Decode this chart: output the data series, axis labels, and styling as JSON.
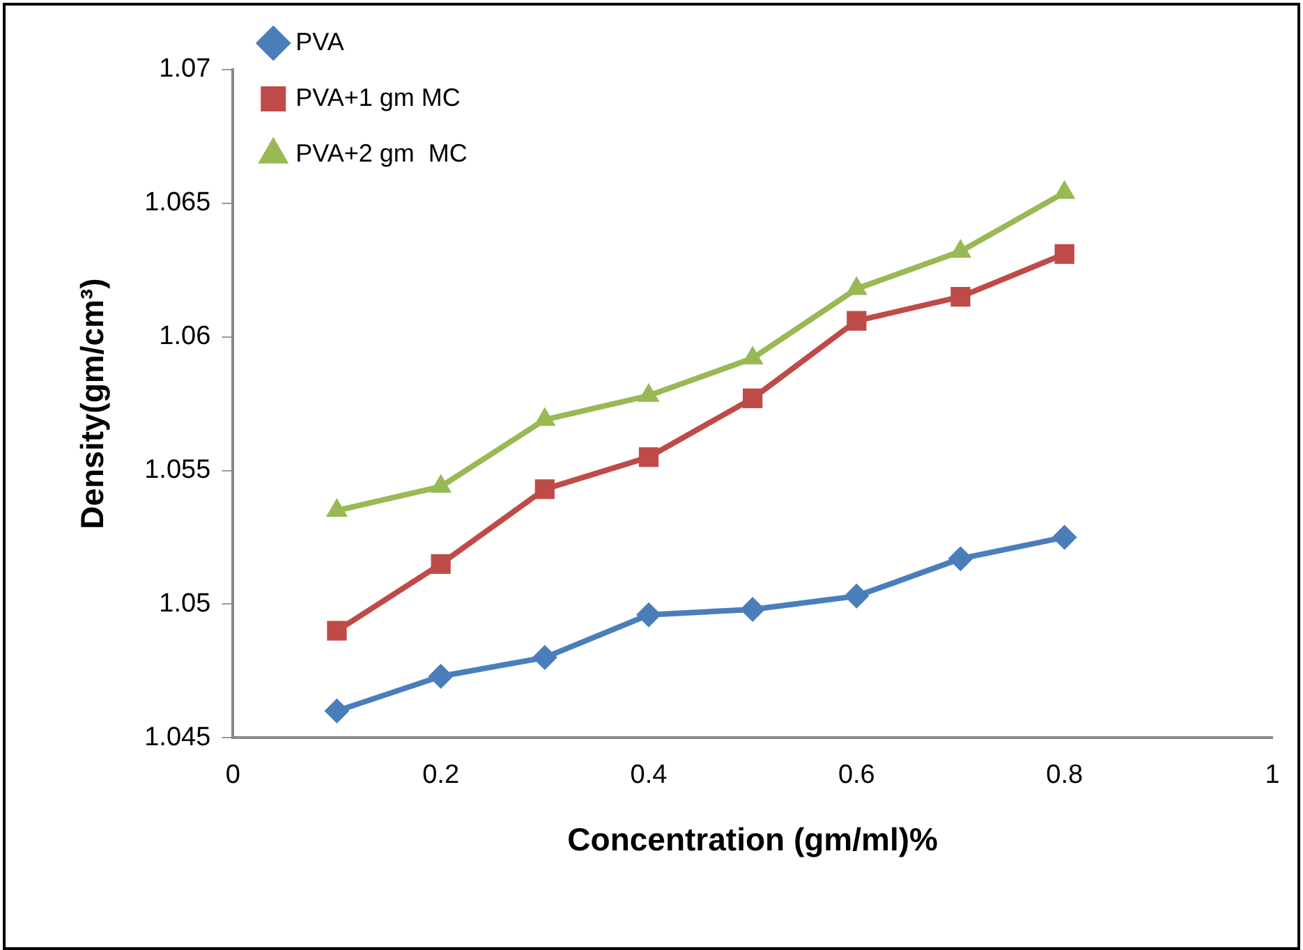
{
  "chart_data": {
    "type": "line",
    "xlabel": "Concentration (gm/ml)%",
    "ylabel": "Density(gm/cm³)",
    "x": [
      0.1,
      0.2,
      0.3,
      0.4,
      0.5,
      0.6,
      0.7,
      0.8
    ],
    "xlim": [
      0,
      1
    ],
    "xticks": [
      0,
      0.2,
      0.4,
      0.6,
      0.8,
      1
    ],
    "ylim": [
      1.045,
      1.07
    ],
    "yticks": [
      1.045,
      1.05,
      1.055,
      1.06,
      1.065,
      1.07
    ],
    "grid": false,
    "legend": "top left",
    "series": [
      {
        "name": "PVA",
        "color": "#4a7ebb",
        "marker": "diamond",
        "values": [
          1.046,
          1.0473,
          1.048,
          1.0496,
          1.0498,
          1.0503,
          1.0517,
          1.0525
        ]
      },
      {
        "name": "PVA+1 gm MC",
        "color": "#be4b48",
        "marker": "square",
        "values": [
          1.049,
          1.0515,
          1.0543,
          1.0555,
          1.0577,
          1.0606,
          1.0615,
          1.0631
        ]
      },
      {
        "name": "PVA+2 gm  MC",
        "color": "#98b954",
        "marker": "triangle",
        "values": [
          1.0535,
          1.0544,
          1.0569,
          1.0578,
          1.0592,
          1.0618,
          1.0632,
          1.0654
        ]
      }
    ]
  }
}
